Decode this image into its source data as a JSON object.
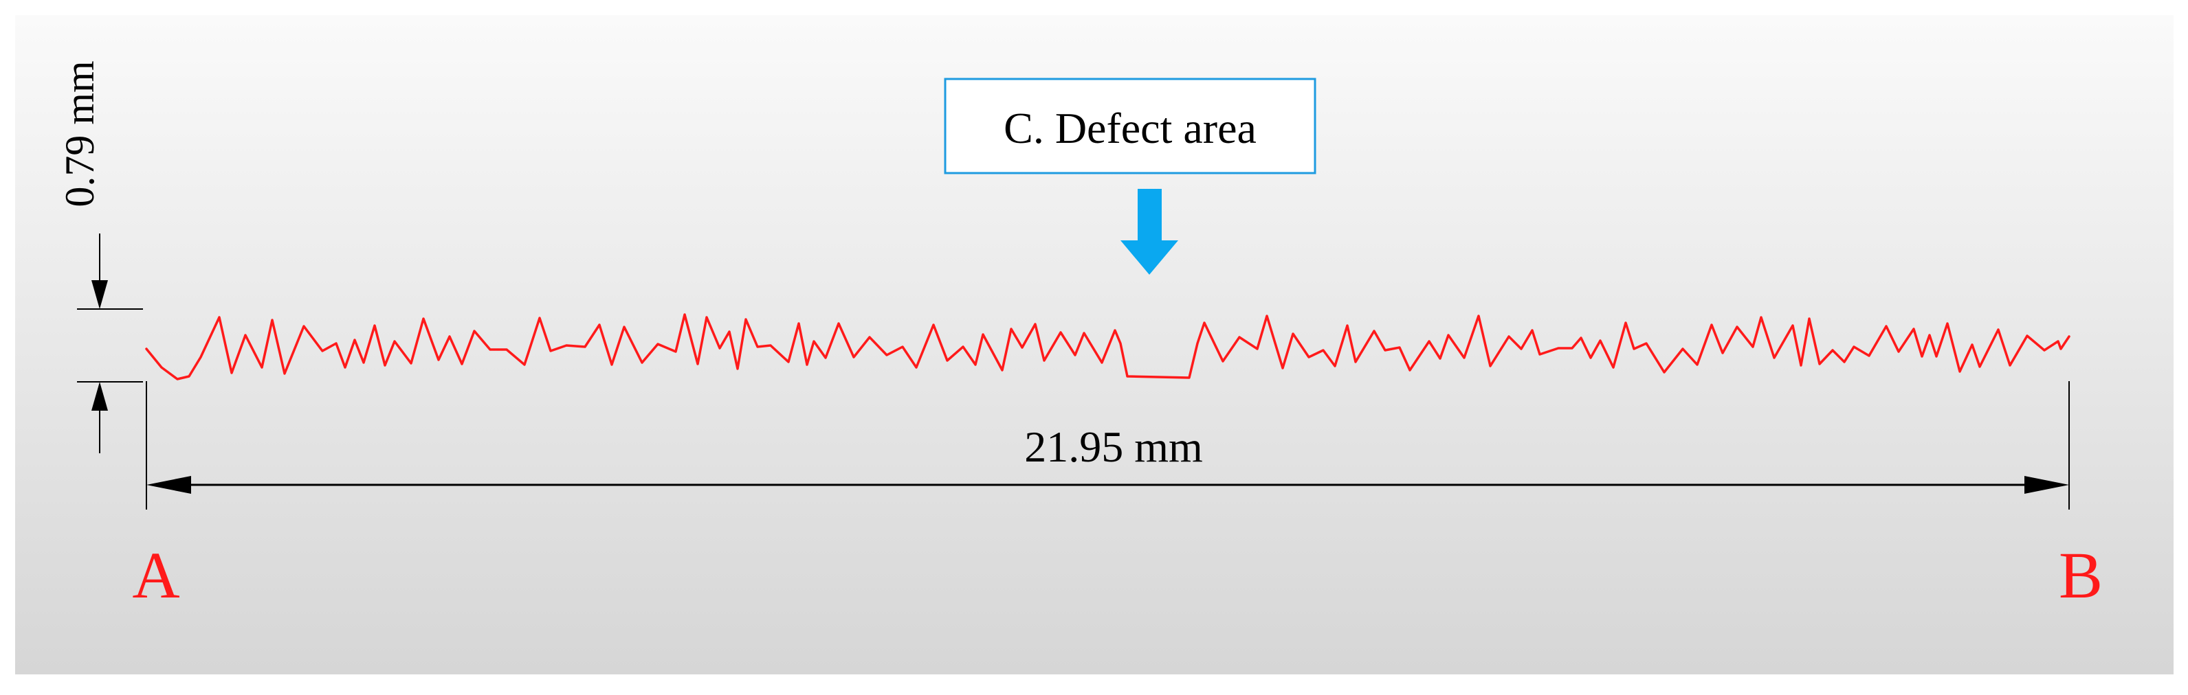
{
  "labels": {
    "height_dimension": "0.79 mm",
    "length_dimension": "21.95 mm",
    "defect_callout": "C. Defect area",
    "start_point": "A",
    "end_point": "B"
  },
  "colors": {
    "profile_line": "#ff1a1a",
    "point_labels": "#ff1a1a",
    "callout_border": "#1e9be0",
    "defect_arrow": "#0aa8f0",
    "dimension_lines": "#000000",
    "panel_background_top": "#fafafa",
    "panel_background_bottom": "#d6d6d6"
  },
  "icons": {
    "defect_pointer": "down-arrow-icon"
  }
}
